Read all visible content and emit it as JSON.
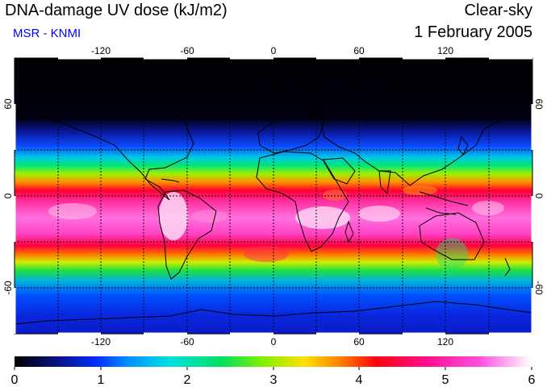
{
  "title": "DNA-damage UV dose (kJ/m2)",
  "subtitle": "MSR - KNMI",
  "sky_condition": "Clear-sky",
  "date": "1 February 2005",
  "longitude_ticks": [
    "-120",
    "-60",
    "0",
    "60",
    "120"
  ],
  "latitude_ticks": [
    "60",
    "0",
    "-60"
  ],
  "colorbar": {
    "labels": [
      "0",
      "1",
      "2",
      "3",
      "4",
      "5",
      "6"
    ],
    "min": 0,
    "max": 6
  },
  "colors": {
    "subtitle": "#0000ff",
    "coast": "#000000"
  }
}
